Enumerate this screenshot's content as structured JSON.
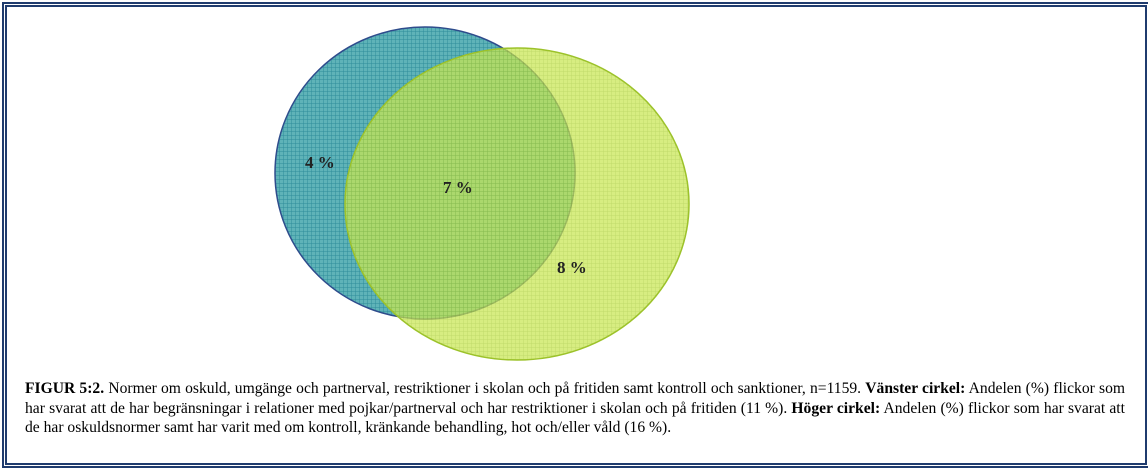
{
  "regions": [
    {
      "label": "4 %"
    },
    {
      "label": "7 %"
    },
    {
      "label": "8 %"
    }
  ],
  "caption": {
    "figure_label": "FIGUR 5:2.",
    "text": "Normer om oskuld, umgänge och partnerval, restriktioner i skolan och på fritiden samt kontroll och sanktioner, n=1159.",
    "left_circle": {
      "heading": "Vänster cirkel:",
      "text": "Andelen (%) flickor som har svarat att de har begränsningar i relationer med pojkar/partnerval och har restriktioner i skolan och på fritiden (11 %)."
    },
    "right_circle": {
      "heading": "Höger cirkel:",
      "text": "Andelen (%) flickor som har svarat att de har oskuldsnormer samt har varit med om kontroll, kränkande behandling, hot och/eller våld (16 %)."
    }
  }
}
